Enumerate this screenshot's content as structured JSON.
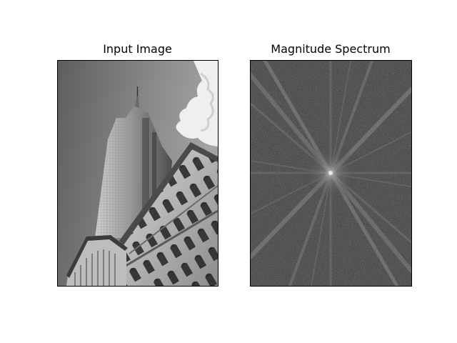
{
  "figure": {
    "panels": [
      {
        "title": "Input Image",
        "content": "grayscale photograph"
      },
      {
        "title": "Magnitude Spectrum",
        "content": "grayscale fourier magnitude spectrum"
      }
    ]
  }
}
